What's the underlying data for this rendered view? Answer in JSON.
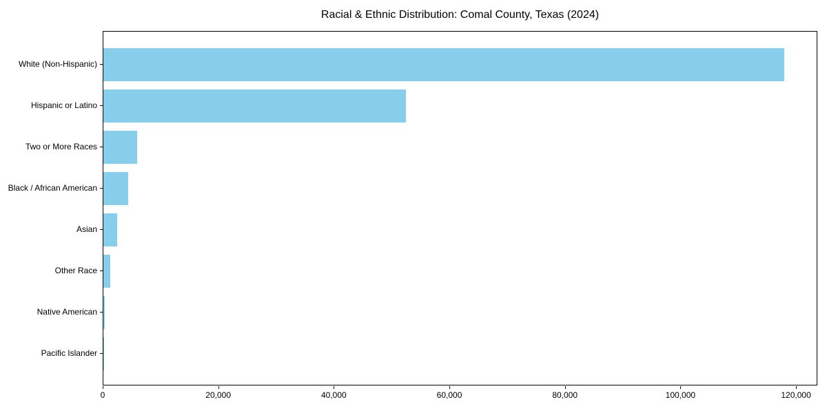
{
  "title": "Racial & Ethnic Distribution: Comal County, Texas (2024)",
  "chart_data": {
    "type": "bar",
    "orientation": "horizontal",
    "title": "Racial & Ethnic Distribution: Comal County, Texas (2024)",
    "xlabel": "",
    "ylabel": "",
    "categories": [
      "White (Non-Hispanic)",
      "Hispanic or Latino",
      "Two or More Races",
      "Black / African American",
      "Asian",
      "Other Race",
      "Native American",
      "Pacific Islander"
    ],
    "values": [
      117800,
      52400,
      5800,
      4300,
      2400,
      1200,
      200,
      50
    ],
    "bar_color": "#87CEEB",
    "background_color": "#ffffff",
    "spine_color": "#000000",
    "xlim": [
      0,
      123690
    ],
    "xticks": [
      0,
      20000,
      40000,
      60000,
      80000,
      100000,
      120000
    ],
    "xtick_labels": [
      "0",
      "20,000",
      "40,000",
      "60,000",
      "80,000",
      "100,000",
      "120,000"
    ],
    "grid": false,
    "legend": null
  }
}
